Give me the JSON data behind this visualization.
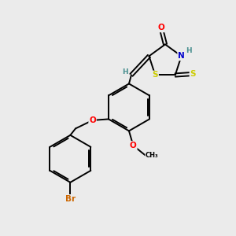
{
  "background_color": "#ebebeb",
  "figure_size": [
    3.0,
    3.0
  ],
  "dpi": 100,
  "atom_colors": {
    "C": "#000000",
    "H": "#4a9090",
    "N": "#0000cc",
    "O": "#ff0000",
    "S": "#cccc00",
    "Br": "#cc6600"
  },
  "bond_color": "#000000",
  "bond_width": 1.4,
  "font_size_atom": 7.5,
  "font_size_h": 6.5
}
